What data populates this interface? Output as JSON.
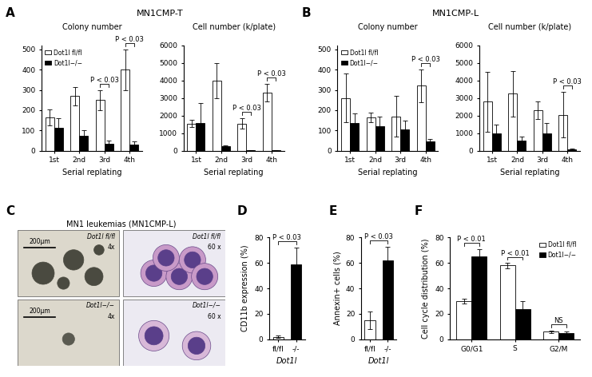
{
  "panels": [
    {
      "label": "A",
      "title": "MN1CMP-T"
    },
    {
      "label": "B",
      "title": "MN1CMP-L"
    },
    {
      "label": "C"
    },
    {
      "label": "D"
    },
    {
      "label": "E"
    },
    {
      "label": "F"
    }
  ],
  "image_panel": {
    "panel": "C",
    "title": "MN1 leukemias (MN1CMP-L)",
    "rows": [
      {
        "images": [
          {
            "label": "Dot1l fl/fl",
            "magnification": "4x",
            "scale_bar": "200μm"
          },
          {
            "label": "Dot1l fl/fl",
            "magnification": "60 x"
          }
        ]
      },
      {
        "images": [
          {
            "label": "Dot1l−/−",
            "magnification": "4x",
            "scale_bar": "200μm"
          },
          {
            "label": "Dot1l−/−",
            "magnification": "60 x"
          }
        ]
      }
    ]
  },
  "chart_data": [
    {
      "panel": "A",
      "type": "bar",
      "title": "Colony number",
      "xlabel": "Serial replating",
      "categories": [
        "1st",
        "2nd",
        "3rd",
        "4th"
      ],
      "ylim": [
        0,
        520
      ],
      "yticks": [
        0,
        100,
        200,
        300,
        400,
        500
      ],
      "legend": "upper left",
      "series": [
        {
          "name": "Dot1l fl/fl",
          "color": "#ffffff",
          "values": [
            165,
            270,
            250,
            400
          ],
          "errors": [
            40,
            45,
            50,
            100
          ]
        },
        {
          "name": "Dot1l−/−",
          "color": "#000000",
          "values": [
            115,
            75,
            35,
            30
          ],
          "errors": [
            45,
            25,
            15,
            15
          ]
        }
      ],
      "annotations": [
        {
          "text": "P < 0.03",
          "categories": [
            "3rd"
          ]
        },
        {
          "text": "P < 0.03",
          "categories": [
            "4th"
          ]
        }
      ]
    },
    {
      "panel": "A",
      "type": "bar",
      "title": "Cell number (k/plate)",
      "xlabel": "Serial replating",
      "categories": [
        "1st",
        "2nd",
        "3rd",
        "4th"
      ],
      "ylim": [
        0,
        6000
      ],
      "yticks": [
        0,
        1000,
        2000,
        3000,
        4000,
        5000,
        6000
      ],
      "series": [
        {
          "name": "Dot1l fl/fl",
          "color": "#ffffff",
          "values": [
            1550,
            4000,
            1550,
            3300
          ],
          "errors": [
            200,
            1000,
            300,
            500
          ]
        },
        {
          "name": "Dot1l−/−",
          "color": "#000000",
          "values": [
            1600,
            250,
            30,
            30
          ],
          "errors": [
            1100,
            80,
            10,
            10
          ]
        }
      ],
      "annotations": [
        {
          "text": "P < 0.03",
          "categories": [
            "3rd"
          ]
        },
        {
          "text": "P < 0.03",
          "categories": [
            "4th"
          ]
        }
      ]
    },
    {
      "panel": "B",
      "type": "bar",
      "title": "Colony number",
      "xlabel": "Serial replating",
      "categories": [
        "1st",
        "2nd",
        "3rd",
        "4th"
      ],
      "ylim": [
        0,
        520
      ],
      "yticks": [
        0,
        100,
        200,
        300,
        400,
        500
      ],
      "legend": "upper left",
      "series": [
        {
          "name": "Dot1l fl/fl",
          "color": "#ffffff",
          "values": [
            260,
            165,
            170,
            320
          ],
          "errors": [
            120,
            25,
            100,
            80
          ]
        },
        {
          "name": "Dot1l−/−",
          "color": "#000000",
          "values": [
            135,
            120,
            105,
            45
          ],
          "errors": [
            50,
            50,
            45,
            15
          ]
        }
      ],
      "annotations": [
        {
          "text": "P < 0.03",
          "categories": [
            "4th"
          ]
        }
      ]
    },
    {
      "panel": "B",
      "type": "bar",
      "title": "Cell number (k/plate)",
      "xlabel": "Serial replating",
      "categories": [
        "1st",
        "2nd",
        "3rd",
        "4th"
      ],
      "ylim": [
        0,
        6000
      ],
      "yticks": [
        0,
        1000,
        2000,
        3000,
        4000,
        5000,
        6000
      ],
      "series": [
        {
          "name": "Dot1l fl/fl",
          "color": "#ffffff",
          "values": [
            2800,
            3250,
            2300,
            2050
          ],
          "errors": [
            1700,
            1300,
            500,
            1300
          ]
        },
        {
          "name": "Dot1l−/−",
          "color": "#000000",
          "values": [
            1000,
            600,
            1000,
            80
          ],
          "errors": [
            500,
            200,
            600,
            30
          ]
        }
      ],
      "annotations": [
        {
          "text": "P < 0.03",
          "categories": [
            "4th"
          ]
        }
      ]
    },
    {
      "panel": "D",
      "type": "bar",
      "ylabel": "CD11b expression (%)",
      "xlabel": "Dot1l",
      "categories": [
        "fl/fl",
        "-/-"
      ],
      "ylim": [
        0,
        80
      ],
      "yticks": [
        0,
        20,
        40,
        60,
        80
      ],
      "series": [
        {
          "colors": [
            "#ffffff",
            "#000000"
          ],
          "values": [
            2,
            59
          ],
          "errors": [
            1,
            13
          ]
        }
      ],
      "annotations": [
        {
          "text": "P < 0.03",
          "categories": [
            "fl/fl",
            "-/-"
          ]
        }
      ]
    },
    {
      "panel": "E",
      "type": "bar",
      "ylabel": "Annexin+ cells (%)",
      "xlabel": "Dot1l",
      "categories": [
        "fl/fl",
        "-/-"
      ],
      "ylim": [
        0,
        80
      ],
      "yticks": [
        0,
        20,
        40,
        60,
        80
      ],
      "series": [
        {
          "colors": [
            "#ffffff",
            "#000000"
          ],
          "values": [
            15,
            62
          ],
          "errors": [
            7,
            11
          ]
        }
      ],
      "annotations": [
        {
          "text": "P < 0.03",
          "categories": [
            "fl/fl",
            "-/-"
          ]
        }
      ]
    },
    {
      "panel": "F",
      "type": "bar",
      "ylabel": "Cell cycle distribution (%)",
      "categories": [
        "G0/G1",
        "S",
        "G2/M"
      ],
      "ylim": [
        0,
        80
      ],
      "yticks": [
        0,
        20,
        40,
        60,
        80
      ],
      "legend": "upper right",
      "series": [
        {
          "name": "Dot1l fl/fl",
          "color": "#ffffff",
          "values": [
            30,
            58,
            6
          ],
          "errors": [
            2,
            2,
            1
          ]
        },
        {
          "name": "Dot1l−/−",
          "color": "#000000",
          "values": [
            65,
            24,
            5
          ],
          "errors": [
            6,
            6,
            1
          ]
        }
      ],
      "annotations": [
        {
          "text": "P < 0.01",
          "categories": [
            "G0/G1"
          ]
        },
        {
          "text": "P < 0.01",
          "categories": [
            "S"
          ]
        },
        {
          "text": "NS",
          "categories": [
            "G2/M"
          ]
        }
      ]
    }
  ]
}
